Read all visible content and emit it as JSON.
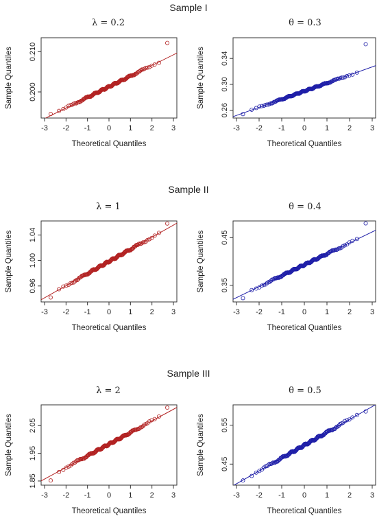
{
  "sections": [
    {
      "title": "Sample I"
    },
    {
      "title": "Sample II"
    },
    {
      "title": "Sample III"
    }
  ],
  "common": {
    "xlabel": "Theoretical Quantiles",
    "ylabel": "Sample Quantiles",
    "x_ticks": [
      "-3",
      "-2",
      "-1",
      "0",
      "1",
      "2",
      "3"
    ]
  },
  "colors": {
    "red": "#b22222",
    "blue": "#1f1fa8"
  },
  "chart_data": [
    {
      "type": "scatter",
      "title": "λ = 0.2",
      "color": "red",
      "xlim": [
        -3,
        3
      ],
      "ylim": [
        0.1935,
        0.2135
      ],
      "y_ticks": [
        0.2,
        0.21
      ],
      "y_tick_labels": [
        "0.200",
        "0.210"
      ],
      "y_min": 0.1945,
      "y_max": 0.2122,
      "line": [
        0.2013,
        0.00265
      ]
    },
    {
      "type": "scatter",
      "title": "θ = 0.3",
      "color": "blue",
      "xlim": [
        -3,
        3
      ],
      "ylim": [
        0.248,
        0.372
      ],
      "y_ticks": [
        0.26,
        0.3,
        0.34
      ],
      "y_tick_labels": [
        "0.26",
        "0.30",
        "0.34"
      ],
      "y_min": 0.254,
      "y_max": 0.362,
      "line": [
        0.2895,
        0.0125
      ]
    },
    {
      "type": "scatter",
      "title": "λ = 1",
      "color": "red",
      "xlim": [
        -3,
        3
      ],
      "ylim": [
        0.935,
        1.062
      ],
      "y_ticks": [
        0.96,
        1.0,
        1.04
      ],
      "y_tick_labels": [
        "0.96",
        "1.00",
        "1.04"
      ],
      "y_min": 0.942,
      "y_max": 1.058,
      "line": [
        0.9985,
        0.019
      ]
    },
    {
      "type": "scatter",
      "title": "θ = 0.4",
      "color": "blue",
      "xlim": [
        -3,
        3
      ],
      "ylim": [
        0.315,
        0.485
      ],
      "y_ticks": [
        0.35,
        0.45
      ],
      "y_tick_labels": [
        "0.35",
        "0.45"
      ],
      "y_min": 0.323,
      "y_max": 0.48,
      "line": [
        0.393,
        0.023
      ]
    },
    {
      "type": "scatter",
      "title": "λ = 2",
      "color": "red",
      "xlim": [
        -3,
        3
      ],
      "ylim": [
        1.835,
        2.125
      ],
      "y_ticks": [
        1.85,
        1.95,
        2.05
      ],
      "y_tick_labels": [
        "1.85",
        "1.95",
        "2.05"
      ],
      "y_min": 1.852,
      "y_max": 2.115,
      "line": [
        1.983,
        0.042
      ]
    },
    {
      "type": "scatter",
      "title": "θ = 0.5",
      "color": "blue",
      "xlim": [
        -3,
        3
      ],
      "ylim": [
        0.396,
        0.602
      ],
      "y_ticks": [
        0.45,
        0.55
      ],
      "y_tick_labels": [
        "0.45",
        "0.55"
      ],
      "y_min": 0.408,
      "y_max": 0.585,
      "line": [
        0.4985,
        0.033
      ]
    }
  ]
}
